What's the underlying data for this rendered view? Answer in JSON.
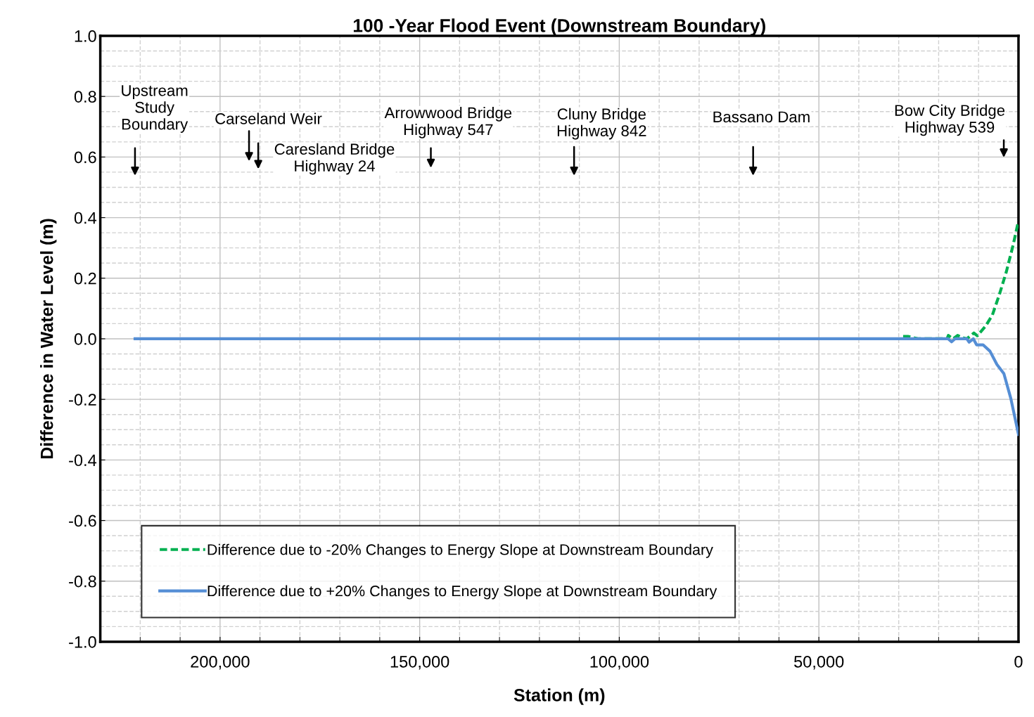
{
  "chart_data": {
    "type": "line",
    "title": "100 -Year Flood Event (Downstream Boundary)",
    "xlabel": "Station (m)",
    "ylabel": "Difference in Water Level (m)",
    "xlim": [
      230000,
      0
    ],
    "xticks": [
      {
        "value": 200000,
        "label": "200,000"
      },
      {
        "value": 150000,
        "label": "150,000"
      },
      {
        "value": 100000,
        "label": "100,000"
      },
      {
        "value": 50000,
        "label": "50,000"
      },
      0
    ],
    "ylim": [
      -1,
      1
    ],
    "yticks": [
      {
        "value": -1,
        "label": "-1.0"
      },
      {
        "value": -0.8,
        "label": "-0.8"
      },
      {
        "value": -0.6,
        "label": "-0.6"
      },
      {
        "value": -0.4,
        "label": "-0.4"
      },
      {
        "value": -0.2,
        "label": "-0.2"
      },
      {
        "value": 0,
        "label": "0.0"
      },
      {
        "value": 0.2,
        "label": "0.2"
      },
      {
        "value": 0.4,
        "label": "0.4"
      },
      {
        "value": 0.6,
        "label": "0.6"
      },
      {
        "value": 0.8,
        "label": "0.8"
      },
      {
        "value": 1,
        "label": "1.0"
      }
    ],
    "grid": true,
    "legend": "bottom",
    "marker": "none",
    "series": [
      {
        "name": "Difference due to -20% Changes to Energy Slope at Downstream Boundary",
        "color": "#00b050",
        "line_style": "dashed",
        "x": [
          28900,
          27700,
          26500,
          25000,
          17900,
          17570,
          16410,
          15250,
          14090,
          12930,
          11190,
          10320,
          8290,
          6550,
          4810,
          3070,
          1330,
          0
        ],
        "values": [
          0.008,
          0.008,
          0.004,
          0,
          0,
          0.011,
          0,
          0.011,
          0.004,
          0,
          0.019,
          0.01,
          0.041,
          0.078,
          0.145,
          0.22,
          0.31,
          0.39
        ]
      },
      {
        "name": "Difference due to +20% Changes to Energy Slope at Downstream Boundary",
        "color": "#558ed5",
        "line_style": "solid",
        "x": [
          221300,
          17630,
          16760,
          15890,
          12935,
          12350,
          11300,
          10500,
          8880,
          7140,
          5400,
          3660,
          1920,
          0
        ],
        "values": [
          0,
          0,
          -0.01,
          0,
          0,
          -0.011,
          0,
          -0.02,
          -0.02,
          -0.041,
          -0.085,
          -0.115,
          -0.197,
          -0.316
        ]
      }
    ],
    "annotations": [
      "Upstream\nStudy\nBoundary",
      "Carseland Weir",
      "Caresland Bridge\nHighway 24",
      "Arrowwood Bridge\nHighway 547",
      "Cluny Bridge\nHighway 842",
      "Bassano Dam",
      "Bow City Bridge\nHighway 539"
    ]
  }
}
